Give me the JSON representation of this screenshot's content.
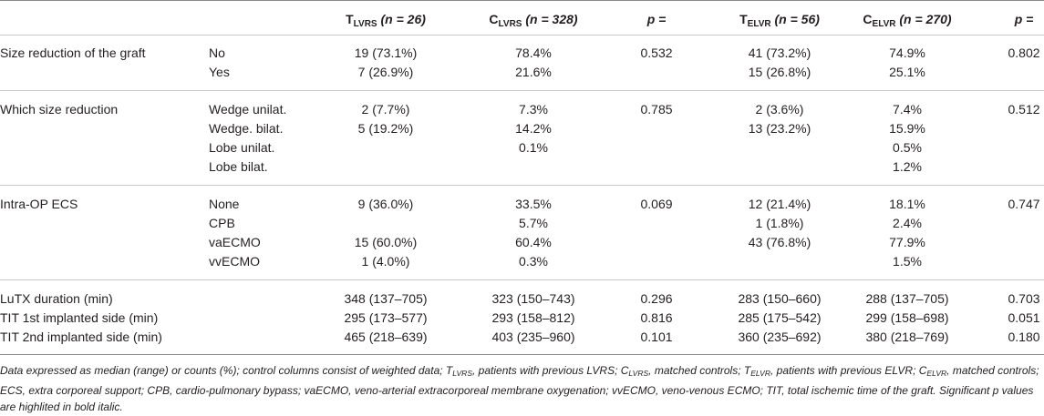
{
  "header": {
    "t_lvrs": {
      "main": "T",
      "sub": "LVRS",
      "n": "(n = 26)"
    },
    "c_lvrs": {
      "main": "C",
      "sub": "LVRS",
      "n": "(n = 328)"
    },
    "p1": "p =",
    "t_elvr": {
      "main": "T",
      "sub": "ELVR",
      "n": "(n = 56)"
    },
    "c_elvr": {
      "main": "C",
      "sub": "ELVR",
      "n": "(n = 270)"
    },
    "p2": "p ="
  },
  "rows": [
    {
      "label": "Size reduction of the graft",
      "sub": "No",
      "t_lvrs": "19 (73.1%)",
      "c_lvrs": "78.4%",
      "p1": "0.532",
      "t_elvr": "41 (73.2%)",
      "c_elvr": "74.9%",
      "p2": "0.802"
    },
    {
      "label": "",
      "sub": "Yes",
      "t_lvrs": "7 (26.9%)",
      "c_lvrs": "21.6%",
      "p1": "",
      "t_elvr": "15 (26.8%)",
      "c_elvr": "25.1%",
      "p2": ""
    },
    {
      "label": "Which size reduction",
      "sub": "Wedge unilat.",
      "t_lvrs": "2 (7.7%)",
      "c_lvrs": "7.3%",
      "p1": "0.785",
      "t_elvr": "2 (3.6%)",
      "c_elvr": "7.4%",
      "p2": "0.512"
    },
    {
      "label": "",
      "sub": "Wedge. bilat.",
      "t_lvrs": "5 (19.2%)",
      "c_lvrs": "14.2%",
      "p1": "",
      "t_elvr": "13 (23.2%)",
      "c_elvr": "15.9%",
      "p2": ""
    },
    {
      "label": "",
      "sub": "Lobe unilat.",
      "t_lvrs": "",
      "c_lvrs": "0.1%",
      "p1": "",
      "t_elvr": "",
      "c_elvr": "0.5%",
      "p2": ""
    },
    {
      "label": "",
      "sub": "Lobe bilat.",
      "t_lvrs": "",
      "c_lvrs": "",
      "p1": "",
      "t_elvr": "",
      "c_elvr": "1.2%",
      "p2": ""
    },
    {
      "label": "Intra-OP ECS",
      "sub": "None",
      "t_lvrs": "9 (36.0%)",
      "c_lvrs": "33.5%",
      "p1": "0.069",
      "t_elvr": "12 (21.4%)",
      "c_elvr": "18.1%",
      "p2": "0.747"
    },
    {
      "label": "",
      "sub": "CPB",
      "t_lvrs": "",
      "c_lvrs": "5.7%",
      "p1": "",
      "t_elvr": "1 (1.8%)",
      "c_elvr": "2.4%",
      "p2": ""
    },
    {
      "label": "",
      "sub": "vaECMO",
      "t_lvrs": "15 (60.0%)",
      "c_lvrs": "60.4%",
      "p1": "",
      "t_elvr": "43 (76.8%)",
      "c_elvr": "77.9%",
      "p2": ""
    },
    {
      "label": "",
      "sub": "vvECMO",
      "t_lvrs": "1 (4.0%)",
      "c_lvrs": "0.3%",
      "p1": "",
      "t_elvr": "",
      "c_elvr": "1.5%",
      "p2": ""
    },
    {
      "label": "LuTX duration (min)",
      "sub": "",
      "t_lvrs": "348 (137–705)",
      "c_lvrs": "323 (150–743)",
      "p1": "0.296",
      "t_elvr": "283 (150–660)",
      "c_elvr": "288 (137–705)",
      "p2": "0.703"
    },
    {
      "label": "TIT 1st implanted side (min)",
      "sub": "",
      "t_lvrs": "295 (173–577)",
      "c_lvrs": "293 (158–812)",
      "p1": "0.816",
      "t_elvr": "285 (175–542)",
      "c_elvr": "299 (158–698)",
      "p2": "0.051"
    },
    {
      "label": "TIT 2nd implanted side (min)",
      "sub": "",
      "t_lvrs": "465 (218–639)",
      "c_lvrs": "403 (235–960)",
      "p1": "0.101",
      "t_elvr": "360 (235–692)",
      "c_elvr": "380 (218–769)",
      "p2": "0.180"
    }
  ],
  "footnote": [
    {
      "t": "Data expressed as median (range) or counts (%); control columns consist of weighted data; "
    },
    {
      "t": "T"
    },
    {
      "t": "LVRS",
      "sub": true
    },
    {
      "t": ", patients with previous LVRS; "
    },
    {
      "t": "C"
    },
    {
      "t": "LVRS",
      "sub": true
    },
    {
      "t": ", matched controls; "
    },
    {
      "t": "T"
    },
    {
      "t": "ELVR",
      "sub": true
    },
    {
      "t": ", patients with previous ELVR; "
    },
    {
      "t": "C"
    },
    {
      "t": "ELVR",
      "sub": true
    },
    {
      "t": ", matched controls; ECS, extra corporeal support; CPB, cardio-pulmonary bypass; vaECMO, veno-arterial extracorporeal membrane oxygenation; vvECMO, veno-venous ECMO; TIT, total ischemic time of the graft. Significant p values are highlited in bold italic."
    }
  ]
}
